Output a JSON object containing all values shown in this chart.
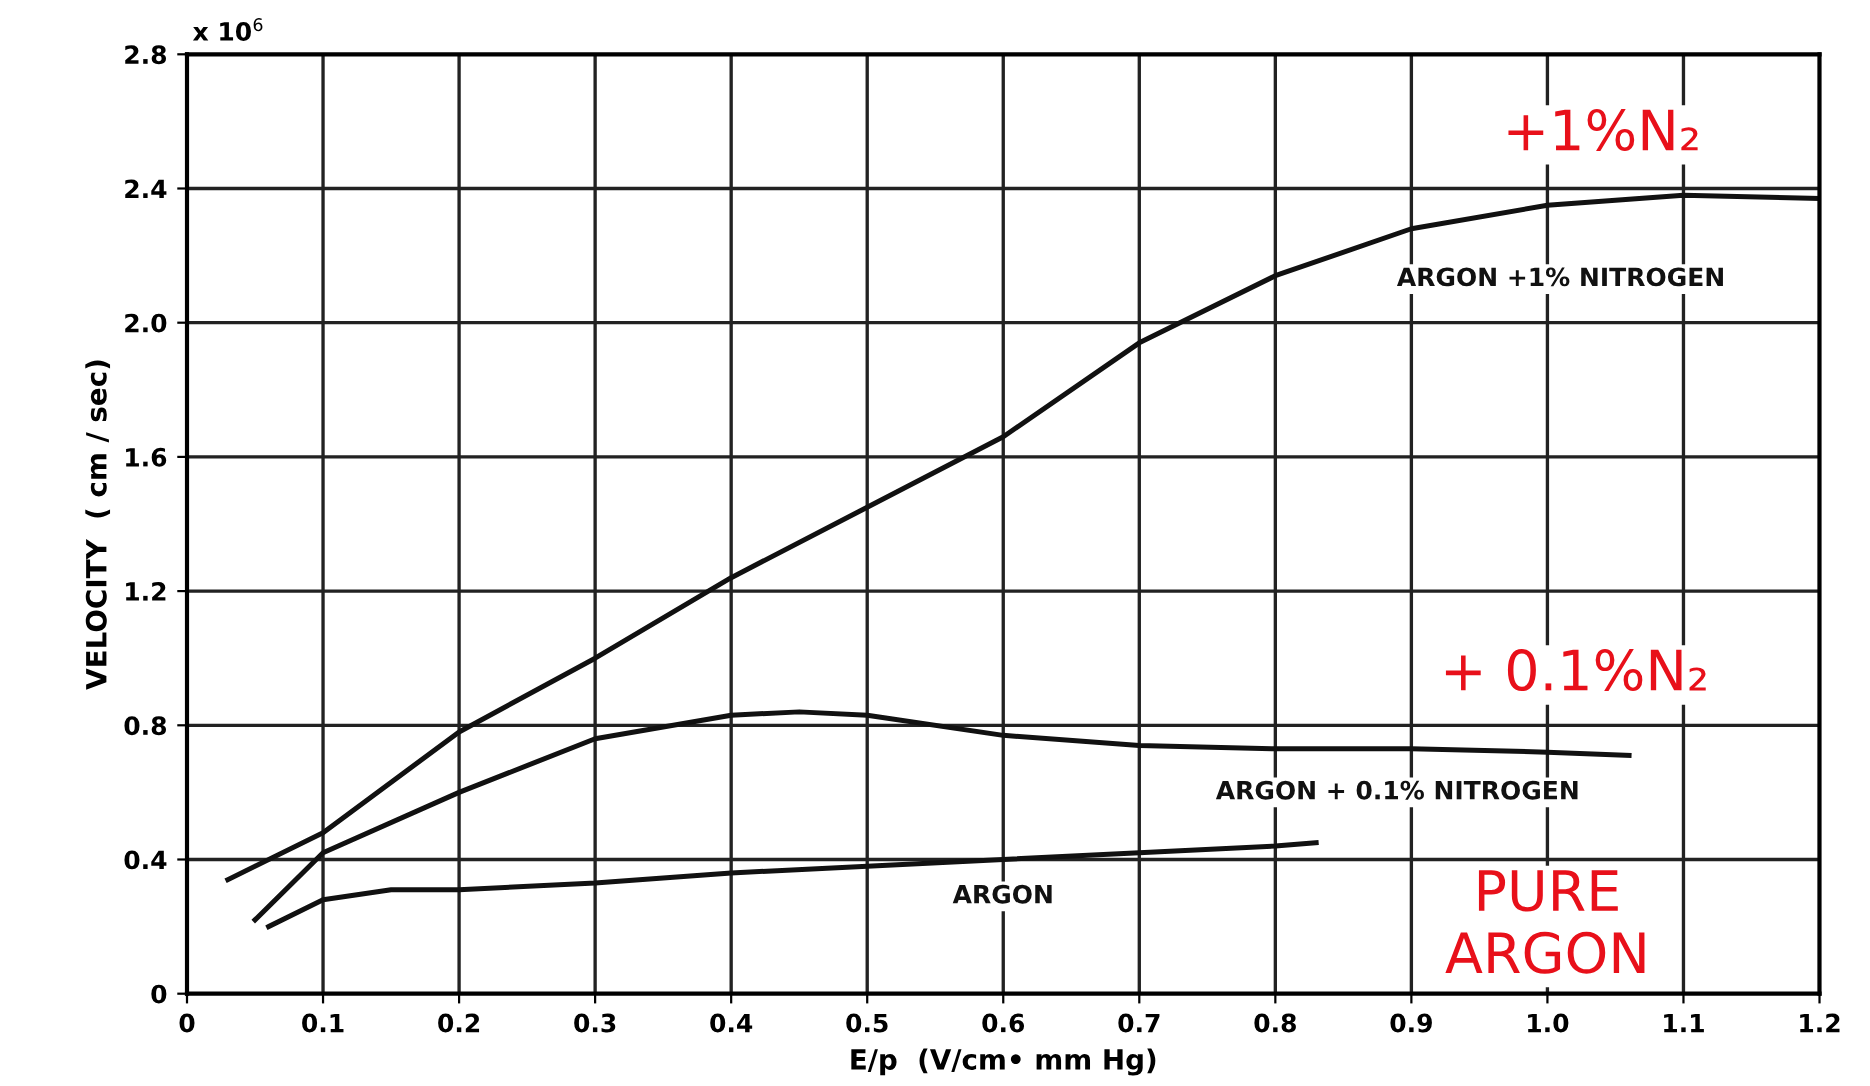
{
  "chart_data": {
    "type": "line",
    "xlabel": "E/p  (V/cm• mm Hg)",
    "ylabel": "VELOCITY  ( cm / sec)",
    "series": [
      {
        "name": "ARGON +1% NITROGEN",
        "color": "#111111",
        "x": [
          0.03,
          0.1,
          0.2,
          0.3,
          0.4,
          0.5,
          0.6,
          0.7,
          0.8,
          0.9,
          1.0,
          1.1,
          1.2
        ],
        "values": [
          0.34,
          0.48,
          0.78,
          1.0,
          1.24,
          1.45,
          1.66,
          1.94,
          2.14,
          2.28,
          2.35,
          2.38,
          2.37
        ]
      },
      {
        "name": "ARGON + 0.1% NITROGEN",
        "color": "#111111",
        "x": [
          0.05,
          0.1,
          0.2,
          0.3,
          0.4,
          0.45,
          0.5,
          0.6,
          0.7,
          0.8,
          0.9,
          1.0,
          1.06
        ],
        "values": [
          0.22,
          0.42,
          0.6,
          0.76,
          0.83,
          0.84,
          0.83,
          0.77,
          0.74,
          0.73,
          0.73,
          0.72,
          0.71
        ]
      },
      {
        "name": "ARGON",
        "color": "#111111",
        "x": [
          0.06,
          0.1,
          0.15,
          0.2,
          0.3,
          0.4,
          0.5,
          0.6,
          0.7,
          0.8,
          0.83
        ],
        "values": [
          0.2,
          0.28,
          0.31,
          0.31,
          0.33,
          0.36,
          0.38,
          0.4,
          0.42,
          0.44,
          0.45
        ]
      }
    ],
    "xlim": [
      0,
      1.2
    ],
    "ylim": [
      0,
      2.8
    ],
    "xticks": [
      0,
      0.1,
      0.2,
      0.3,
      0.4,
      0.5,
      0.6,
      0.7,
      0.8,
      0.9,
      {
        "value": 1,
        "label": "1.0"
      },
      1.1,
      1.2
    ],
    "yticks": [
      0,
      0.4,
      0.8,
      1.2,
      1.6,
      {
        "value": 2,
        "label": "2.0"
      },
      2.4,
      2.8
    ],
    "grid": true,
    "marker": "none",
    "line_style": "solid",
    "legend": false,
    "annotations": [
      "x 10$^{6}$",
      "+1%N₂",
      "+ 0.1%N₂",
      "PURE\nARGON"
    ]
  }
}
